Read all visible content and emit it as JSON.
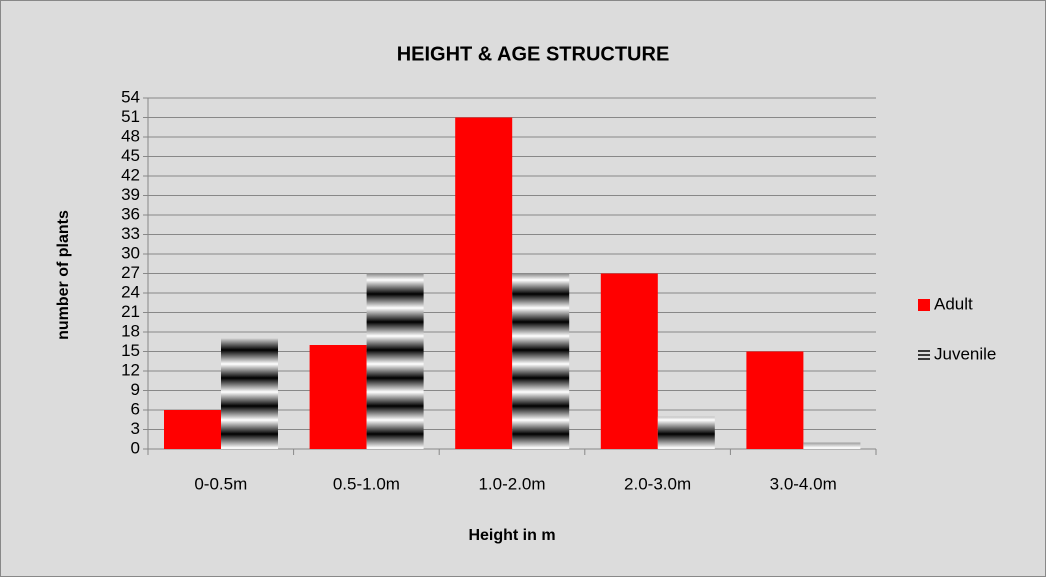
{
  "chart_data": {
    "type": "bar",
    "title": "HEIGHT & AGE STRUCTURE",
    "x_label": "Height in m",
    "y_label": "number of plants",
    "categories": [
      "0-0.5m",
      "0.5-1.0m",
      "1.0-2.0m",
      "2.0-3.0m",
      "3.0-4.0m"
    ],
    "series": [
      {
        "name": "Adult",
        "color": "#ff0000",
        "values": [
          6,
          16,
          51,
          27,
          15
        ]
      },
      {
        "name": "Juvenile",
        "color": "#000000",
        "values": [
          17,
          27,
          27,
          5,
          1
        ]
      }
    ],
    "ylim": [
      0,
      54
    ],
    "yticks": [
      0,
      3,
      6,
      9,
      12,
      15,
      18,
      21,
      24,
      27,
      30,
      33,
      36,
      39,
      42,
      45,
      48,
      51,
      54
    ],
    "grid": true,
    "legend": "right"
  }
}
